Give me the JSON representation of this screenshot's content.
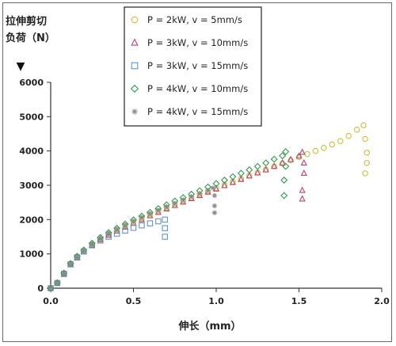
{
  "chart_data": {
    "type": "scatter",
    "ylabel_lines": [
      "拉伸剪切",
      "负荷（N）"
    ],
    "ylabel_arrow": "▼",
    "xlabel": "伸长（mm）",
    "xlim": [
      0,
      2.0
    ],
    "ylim": [
      0,
      6000
    ],
    "xticks": [
      "0.0",
      "0.5",
      "1.0",
      "1.5",
      "2.0"
    ],
    "yticks": [
      "0",
      "1000",
      "2000",
      "3000",
      "4000",
      "5000",
      "6000"
    ],
    "legend_position": "top-center",
    "series": [
      {
        "name": "P = 2kW, v = 5mm/s",
        "marker": "circle",
        "color": "#c8c23a",
        "points": [
          [
            0,
            0
          ],
          [
            0.04,
            150
          ],
          [
            0.08,
            420
          ],
          [
            0.12,
            700
          ],
          [
            0.16,
            900
          ],
          [
            0.2,
            1080
          ],
          [
            0.25,
            1280
          ],
          [
            0.3,
            1450
          ],
          [
            0.35,
            1580
          ],
          [
            0.4,
            1700
          ],
          [
            0.45,
            1820
          ],
          [
            0.5,
            1930
          ],
          [
            0.55,
            2040
          ],
          [
            0.6,
            2150
          ],
          [
            0.65,
            2250
          ],
          [
            0.7,
            2350
          ],
          [
            0.75,
            2450
          ],
          [
            0.8,
            2550
          ],
          [
            0.85,
            2640
          ],
          [
            0.9,
            2740
          ],
          [
            0.95,
            2830
          ],
          [
            1.0,
            2920
          ],
          [
            1.05,
            3010
          ],
          [
            1.1,
            3100
          ],
          [
            1.15,
            3190
          ],
          [
            1.2,
            3280
          ],
          [
            1.25,
            3370
          ],
          [
            1.3,
            3460
          ],
          [
            1.35,
            3550
          ],
          [
            1.4,
            3640
          ],
          [
            1.45,
            3730
          ],
          [
            1.5,
            3820
          ],
          [
            1.55,
            3910
          ],
          [
            1.6,
            4000
          ],
          [
            1.65,
            4090
          ],
          [
            1.7,
            4190
          ],
          [
            1.75,
            4290
          ],
          [
            1.8,
            4440
          ],
          [
            1.85,
            4620
          ],
          [
            1.89,
            4750
          ],
          [
            1.9,
            4350
          ],
          [
            1.91,
            3950
          ],
          [
            1.91,
            3650
          ],
          [
            1.9,
            3350
          ]
        ]
      },
      {
        "name": "P = 3kW, v = 10mm/s",
        "marker": "triangle",
        "color": "#b8456a",
        "points": [
          [
            0,
            0
          ],
          [
            0.04,
            140
          ],
          [
            0.08,
            400
          ],
          [
            0.12,
            680
          ],
          [
            0.16,
            880
          ],
          [
            0.2,
            1060
          ],
          [
            0.25,
            1250
          ],
          [
            0.3,
            1410
          ],
          [
            0.35,
            1540
          ],
          [
            0.4,
            1660
          ],
          [
            0.45,
            1780
          ],
          [
            0.5,
            1890
          ],
          [
            0.55,
            2000
          ],
          [
            0.6,
            2110
          ],
          [
            0.65,
            2210
          ],
          [
            0.7,
            2310
          ],
          [
            0.75,
            2410
          ],
          [
            0.8,
            2510
          ],
          [
            0.85,
            2610
          ],
          [
            0.9,
            2700
          ],
          [
            0.95,
            2800
          ],
          [
            1.0,
            2890
          ],
          [
            1.05,
            2990
          ],
          [
            1.1,
            3080
          ],
          [
            1.15,
            3170
          ],
          [
            1.2,
            3270
          ],
          [
            1.25,
            3360
          ],
          [
            1.3,
            3450
          ],
          [
            1.35,
            3550
          ],
          [
            1.4,
            3650
          ],
          [
            1.45,
            3750
          ],
          [
            1.5,
            3850
          ],
          [
            1.52,
            3960
          ],
          [
            1.53,
            3650
          ],
          [
            1.53,
            3350
          ],
          [
            1.52,
            2850
          ],
          [
            1.52,
            2600
          ]
        ]
      },
      {
        "name": "P = 3kW, v = 15mm/s",
        "marker": "square",
        "color": "#5f95c4",
        "points": [
          [
            0,
            0
          ],
          [
            0.04,
            150
          ],
          [
            0.08,
            420
          ],
          [
            0.12,
            700
          ],
          [
            0.16,
            900
          ],
          [
            0.2,
            1070
          ],
          [
            0.25,
            1250
          ],
          [
            0.3,
            1390
          ],
          [
            0.35,
            1500
          ],
          [
            0.4,
            1590
          ],
          [
            0.45,
            1680
          ],
          [
            0.5,
            1760
          ],
          [
            0.55,
            1830
          ],
          [
            0.6,
            1890
          ],
          [
            0.65,
            1950
          ],
          [
            0.69,
            2000
          ],
          [
            0.69,
            1750
          ],
          [
            0.69,
            1500
          ]
        ]
      },
      {
        "name": "P = 4kW, v = 10mm/s",
        "marker": "diamond",
        "color": "#2f9a53",
        "points": [
          [
            0,
            0
          ],
          [
            0.04,
            160
          ],
          [
            0.08,
            440
          ],
          [
            0.12,
            720
          ],
          [
            0.16,
            930
          ],
          [
            0.2,
            1110
          ],
          [
            0.25,
            1310
          ],
          [
            0.3,
            1480
          ],
          [
            0.35,
            1620
          ],
          [
            0.4,
            1750
          ],
          [
            0.45,
            1870
          ],
          [
            0.5,
            1990
          ],
          [
            0.55,
            2100
          ],
          [
            0.6,
            2210
          ],
          [
            0.65,
            2320
          ],
          [
            0.7,
            2430
          ],
          [
            0.75,
            2540
          ],
          [
            0.8,
            2640
          ],
          [
            0.85,
            2740
          ],
          [
            0.9,
            2840
          ],
          [
            0.95,
            2950
          ],
          [
            1.0,
            3050
          ],
          [
            1.05,
            3150
          ],
          [
            1.1,
            3250
          ],
          [
            1.15,
            3350
          ],
          [
            1.2,
            3450
          ],
          [
            1.25,
            3550
          ],
          [
            1.3,
            3650
          ],
          [
            1.35,
            3760
          ],
          [
            1.4,
            3860
          ],
          [
            1.42,
            3980
          ],
          [
            1.42,
            3550
          ],
          [
            1.41,
            3150
          ],
          [
            1.41,
            2700
          ]
        ]
      },
      {
        "name": "P = 4kW, v = 15mm/s",
        "marker": "asterisk",
        "color": "#8a8a8a",
        "points": [
          [
            0,
            0
          ],
          [
            0.04,
            150
          ],
          [
            0.08,
            430
          ],
          [
            0.12,
            710
          ],
          [
            0.16,
            910
          ],
          [
            0.2,
            1090
          ],
          [
            0.25,
            1290
          ],
          [
            0.3,
            1460
          ],
          [
            0.35,
            1600
          ],
          [
            0.4,
            1720
          ],
          [
            0.45,
            1840
          ],
          [
            0.5,
            1950
          ],
          [
            0.55,
            2060
          ],
          [
            0.6,
            2170
          ],
          [
            0.65,
            2270
          ],
          [
            0.7,
            2370
          ],
          [
            0.75,
            2470
          ],
          [
            0.8,
            2570
          ],
          [
            0.85,
            2670
          ],
          [
            0.9,
            2760
          ],
          [
            0.95,
            2850
          ],
          [
            0.98,
            2920
          ],
          [
            0.99,
            2700
          ],
          [
            0.99,
            2400
          ],
          [
            0.99,
            2200
          ]
        ]
      }
    ]
  }
}
